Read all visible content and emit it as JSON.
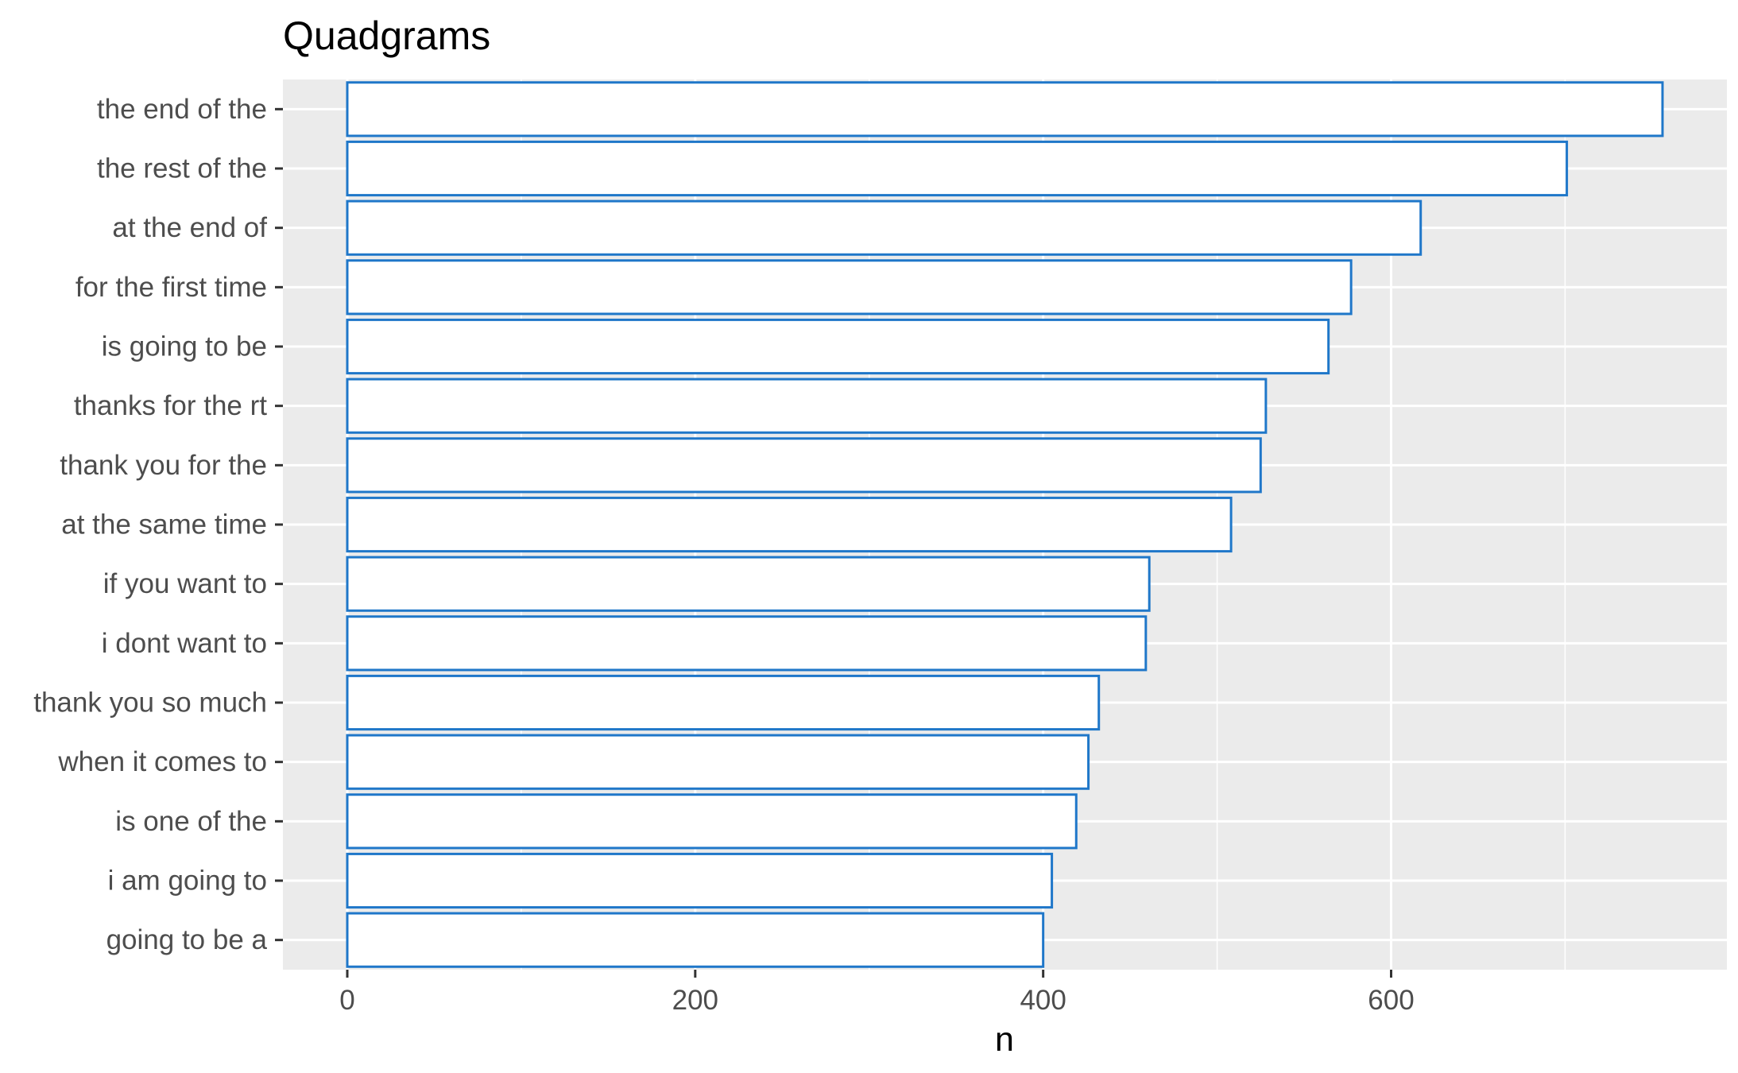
{
  "chart_data": {
    "type": "bar",
    "orientation": "horizontal",
    "title": "Quadgrams",
    "xlabel": "n",
    "ylabel": "",
    "categories": [
      "the end of the",
      "the rest of the",
      "at the end of",
      "for the first time",
      "is going to be",
      "thanks for the rt",
      "thank you for the",
      "at the same time",
      "if you want to",
      "i dont want to",
      "thank you so much",
      "when it comes to",
      "is one of the",
      "i am going to",
      "going to be a"
    ],
    "values": [
      756,
      701,
      617,
      577,
      564,
      528,
      525,
      508,
      461,
      459,
      432,
      426,
      419,
      405,
      400
    ],
    "xlim": [
      -37,
      793
    ],
    "xticks": [
      0,
      200,
      400,
      600
    ],
    "xtick_labels": [
      "0",
      "200",
      "400",
      "600"
    ],
    "grid": true,
    "legend": "none",
    "colors": {
      "panel_background": "#ebebeb",
      "gridline": "#ffffff",
      "bar_fill": "#ffffff",
      "bar_outline": "#1f77c9"
    }
  }
}
